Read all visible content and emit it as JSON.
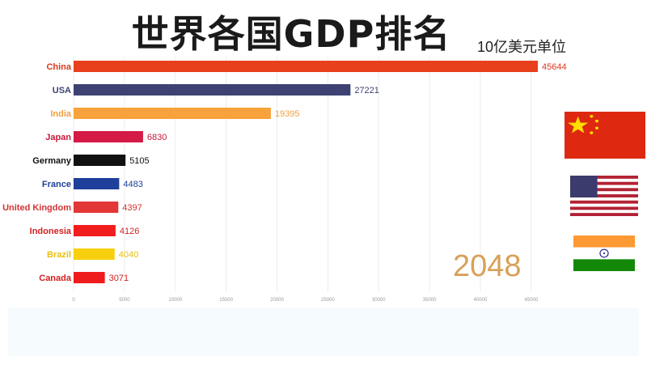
{
  "header": {
    "title": "世界各国GDP排名",
    "unit": "10亿美元单位"
  },
  "year": "2048",
  "flags": [
    "china-flag",
    "usa-flag",
    "india-flag"
  ],
  "chart_data": {
    "type": "bar",
    "orientation": "horizontal",
    "title": "世界各国GDP排名",
    "unit": "10亿美元单位",
    "year": "2048",
    "categories": [
      "China",
      "USA",
      "India",
      "Japan",
      "Germany",
      "France",
      "United Kingdom",
      "Indonesia",
      "Brazil",
      "Canada"
    ],
    "values": [
      45644,
      27221,
      19395,
      6830,
      5105,
      4483,
      4397,
      4126,
      4040,
      3071
    ],
    "colors": [
      "#e8401c",
      "#3d4272",
      "#f7a23a",
      "#d41a45",
      "#111111",
      "#1e3f9a",
      "#e33636",
      "#f21d1d",
      "#f7cf0f",
      "#ee1c1c"
    ],
    "label_colors": [
      "#d93a1c",
      "#3d4272",
      "#f0a040",
      "#c41a3c",
      "#111111",
      "#1e3f9a",
      "#d43232",
      "#d42020",
      "#e8c010",
      "#d42020"
    ],
    "xticks": [
      0,
      5000,
      10000,
      15000,
      20000,
      25000,
      30000,
      35000,
      40000,
      45000
    ],
    "xlim": [
      0,
      46000
    ],
    "grid": true
  }
}
